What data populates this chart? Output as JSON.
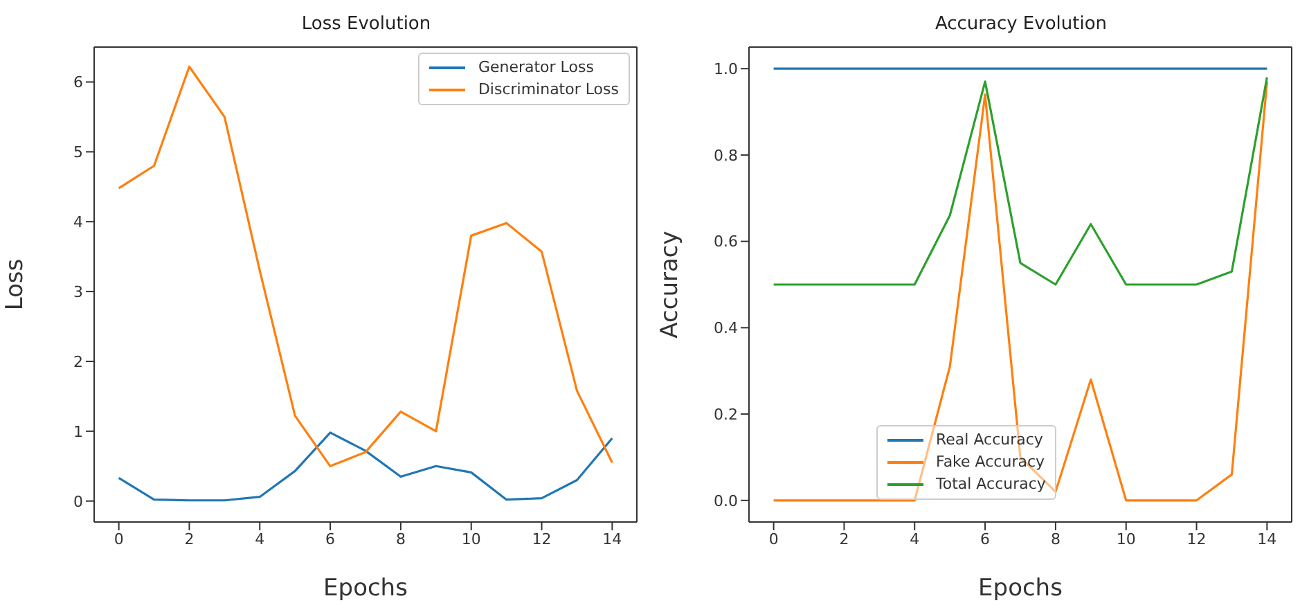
{
  "chart_data": [
    {
      "type": "line",
      "title": "Loss Evolution",
      "xlabel": "Epochs",
      "ylabel": "Loss",
      "x": [
        0,
        1,
        2,
        3,
        4,
        5,
        6,
        7,
        8,
        9,
        10,
        11,
        12,
        13,
        14
      ],
      "series": [
        {
          "name": "Generator Loss",
          "color": "#1f77b4",
          "values": [
            0.33,
            0.02,
            0.01,
            0.01,
            0.06,
            0.43,
            0.98,
            0.72,
            0.35,
            0.5,
            0.41,
            0.02,
            0.04,
            0.3,
            0.9
          ]
        },
        {
          "name": "Discriminator Loss",
          "color": "#ff7f0e",
          "values": [
            4.48,
            4.8,
            6.22,
            5.5,
            3.3,
            1.22,
            0.5,
            0.7,
            1.28,
            1.0,
            3.8,
            3.98,
            3.57,
            1.58,
            0.55
          ]
        }
      ],
      "xlim": [
        -0.7,
        14.7
      ],
      "xticks": [
        0,
        2,
        4,
        6,
        8,
        10,
        12,
        14
      ],
      "ylim": [
        -0.3,
        6.5
      ],
      "yticks": [
        0,
        1,
        2,
        3,
        4,
        5,
        6
      ],
      "grid": false,
      "legend": "top right"
    },
    {
      "type": "line",
      "title": "Accuracy Evolution",
      "xlabel": "Epochs",
      "ylabel": "Accuracy",
      "x": [
        0,
        1,
        2,
        3,
        4,
        5,
        6,
        7,
        8,
        9,
        10,
        11,
        12,
        13,
        14
      ],
      "series": [
        {
          "name": "Real Accuracy",
          "color": "#1f77b4",
          "values": [
            1,
            1,
            1,
            1,
            1,
            1,
            1,
            1,
            1,
            1,
            1,
            1,
            1,
            1,
            1
          ]
        },
        {
          "name": "Fake Accuracy",
          "color": "#ff7f0e",
          "values": [
            0,
            0,
            0,
            0,
            0,
            0.31,
            0.94,
            0.1,
            0.02,
            0.28,
            0,
            0,
            0,
            0.06,
            0.97
          ]
        },
        {
          "name": "Total Accuracy",
          "color": "#2ca02c",
          "values": [
            0.5,
            0.5,
            0.5,
            0.5,
            0.5,
            0.66,
            0.97,
            0.55,
            0.5,
            0.64,
            0.5,
            0.5,
            0.5,
            0.53,
            0.98
          ]
        }
      ],
      "xlim": [
        -0.7,
        14.7
      ],
      "xticks": [
        0,
        2,
        4,
        6,
        8,
        10,
        12,
        14
      ],
      "ylim": [
        -0.05,
        1.05
      ],
      "yticks": [
        {
          "value": 0,
          "label": "0.0"
        },
        0.2,
        0.4,
        0.6,
        0.8,
        {
          "value": 1,
          "label": "1.0"
        }
      ],
      "grid": false,
      "legend": "bottom"
    }
  ]
}
